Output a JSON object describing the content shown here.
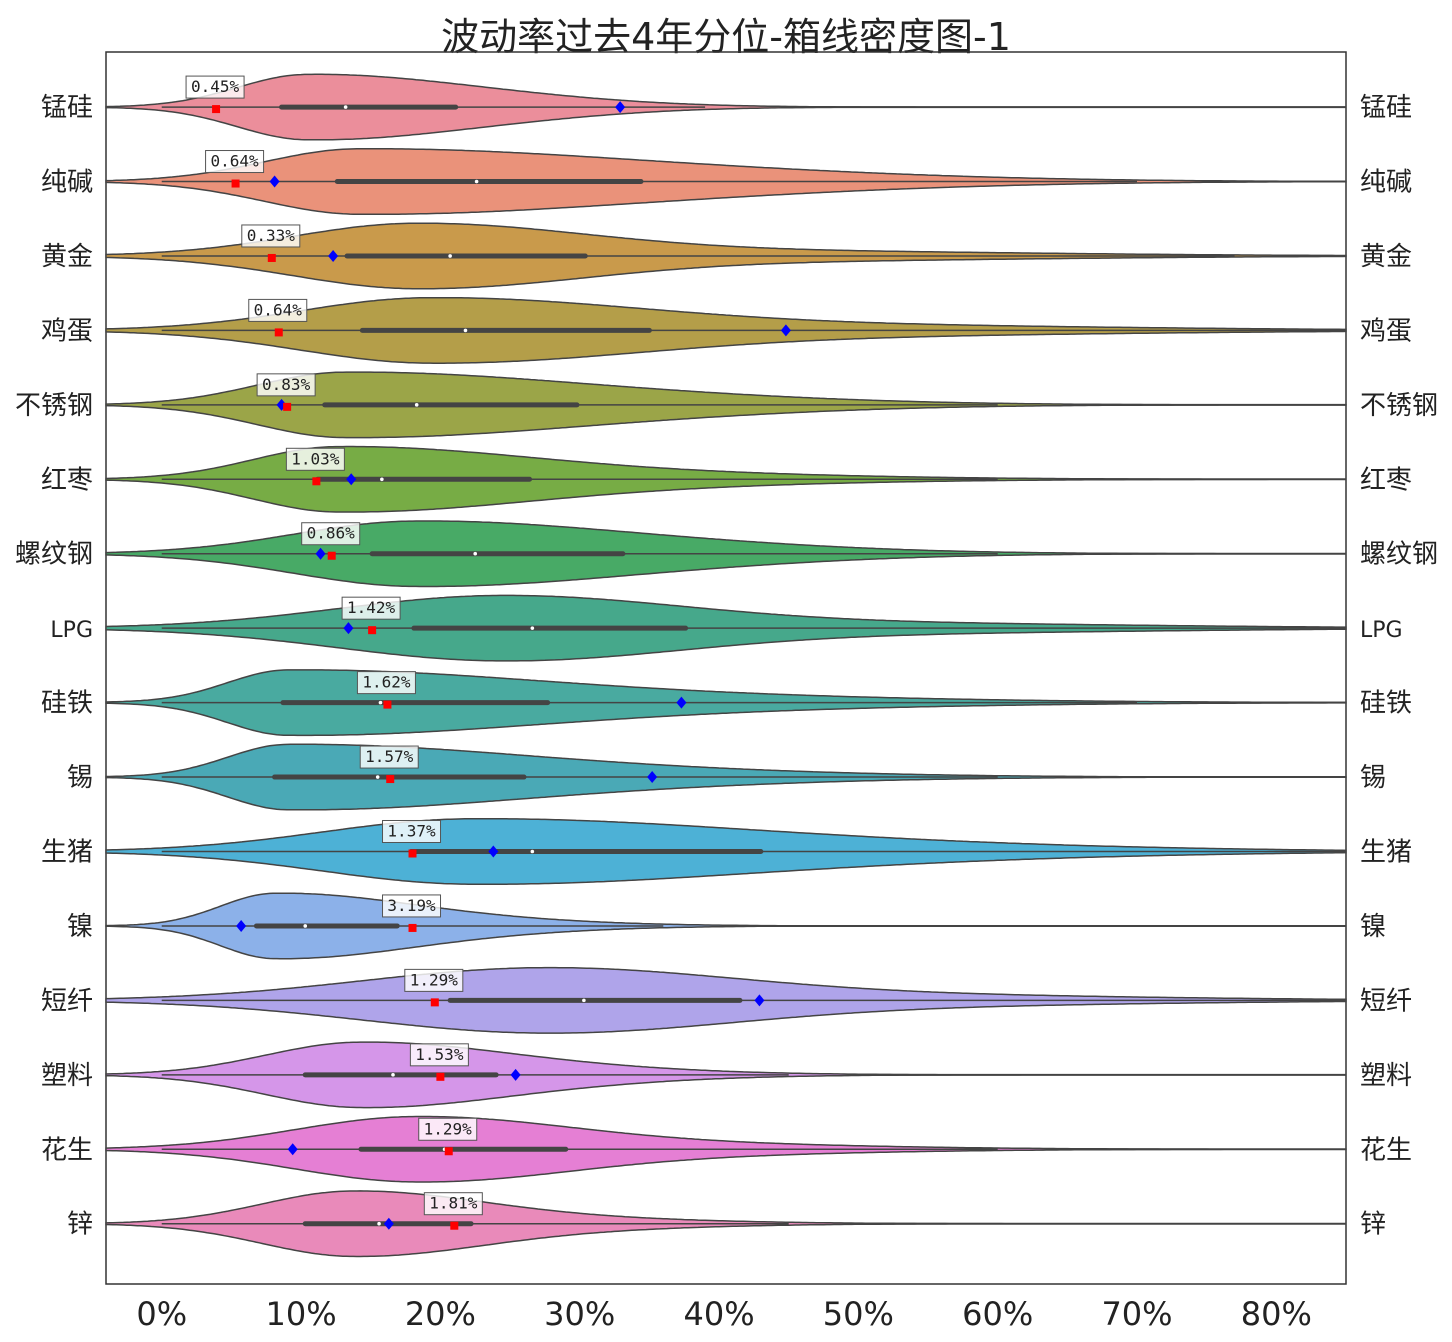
{
  "chart_data": {
    "type": "violin",
    "title": "波动率过去4年分位-箱线密度图-1",
    "xlabel": "",
    "ylabel": "",
    "xlim": [
      -4,
      85
    ],
    "x_ticks": [
      0,
      10,
      20,
      30,
      40,
      50,
      60,
      70,
      80
    ],
    "x_tick_labels": [
      "0%",
      "10%",
      "20%",
      "30%",
      "40%",
      "50%",
      "60%",
      "70%",
      "80%"
    ],
    "grid": false,
    "legend": "none",
    "markers": {
      "current": "red square",
      "reference": "blue diamond"
    },
    "series": [
      {
        "name": "锰硅",
        "color": "#eb8e9b",
        "min": 0,
        "q1": 8.6,
        "median": 13.2,
        "q3": 21.1,
        "max": 39,
        "kde_peak": 10.3,
        "current_pct": 3.9,
        "current_label": "0.45%",
        "reference": 32.9
      },
      {
        "name": "纯碱",
        "color": "#ea927a",
        "min": 0,
        "q1": 12.6,
        "median": 22.6,
        "q3": 34.4,
        "max": 70,
        "kde_peak": 14,
        "current_pct": 5.3,
        "current_label": "0.64%",
        "reference": 8.1
      },
      {
        "name": "黄金",
        "color": "#c99a4b",
        "min": 0,
        "q1": 13.3,
        "median": 20.7,
        "q3": 30.4,
        "max": 77,
        "kde_peak": 18,
        "current_pct": 7.9,
        "current_label": "0.33%",
        "reference": 12.3
      },
      {
        "name": "鸡蛋",
        "color": "#b49e49",
        "min": 0,
        "q1": 14.4,
        "median": 21.8,
        "q3": 35.0,
        "max": 85,
        "kde_peak": 19,
        "current_pct": 8.4,
        "current_label": "0.64%",
        "reference": 44.8
      },
      {
        "name": "不锈钢",
        "color": "#9ba548",
        "min": 0,
        "q1": 11.7,
        "median": 18.3,
        "q3": 29.8,
        "max": 60,
        "kde_peak": 13,
        "current_pct": 9.0,
        "current_label": "0.83%",
        "reference": 8.6
      },
      {
        "name": "红枣",
        "color": "#77ac45",
        "min": 0,
        "q1": 11.2,
        "median": 15.8,
        "q3": 26.4,
        "max": 60,
        "kde_peak": 12.5,
        "current_pct": 11.1,
        "current_label": "1.03%",
        "reference": 13.6
      },
      {
        "name": "螺纹钢",
        "color": "#48aa66",
        "min": 0,
        "q1": 15.1,
        "median": 22.5,
        "q3": 33.1,
        "max": 60,
        "kde_peak": 18,
        "current_pct": 12.2,
        "current_label": "0.86%",
        "reference": 11.4
      },
      {
        "name": "LPG",
        "color": "#46a88b",
        "min": 0,
        "q1": 18.1,
        "median": 26.6,
        "q3": 37.6,
        "max": 85,
        "kde_peak": 24,
        "current_pct": 15.1,
        "current_label": "1.42%",
        "reference": 13.4
      },
      {
        "name": "硅铁",
        "color": "#49aaa0",
        "min": 0,
        "q1": 8.7,
        "median": 15.7,
        "q3": 27.7,
        "max": 70,
        "kde_peak": 9,
        "current_pct": 16.2,
        "current_label": "1.62%",
        "reference": 37.3
      },
      {
        "name": "锡",
        "color": "#4aa9b6",
        "min": 0,
        "q1": 8.1,
        "median": 15.5,
        "q3": 26.0,
        "max": 60,
        "kde_peak": 9,
        "current_pct": 16.4,
        "current_label": "1.57%",
        "reference": 35.2
      },
      {
        "name": "生猪",
        "color": "#4db1d6",
        "min": 0,
        "q1": 17.9,
        "median": 26.6,
        "q3": 43.0,
        "max": 85,
        "kde_peak": 22,
        "current_pct": 18.0,
        "current_label": "1.37%",
        "reference": 23.8
      },
      {
        "name": "镍",
        "color": "#8cb1e9",
        "min": 0,
        "q1": 6.8,
        "median": 10.3,
        "q3": 16.9,
        "max": 36,
        "kde_peak": 8,
        "current_pct": 18.0,
        "current_label": "3.19%",
        "reference": 5.7
      },
      {
        "name": "短纤",
        "color": "#afa4ea",
        "min": 0,
        "q1": 20.7,
        "median": 30.3,
        "q3": 41.5,
        "max": 85,
        "kde_peak": 27,
        "current_pct": 19.6,
        "current_label": "1.29%",
        "reference": 42.9
      },
      {
        "name": "塑料",
        "color": "#d596e9",
        "min": 0,
        "q1": 10.3,
        "median": 16.6,
        "q3": 24.0,
        "max": 45,
        "kde_peak": 14,
        "current_pct": 20.0,
        "current_label": "1.53%",
        "reference": 25.4
      },
      {
        "name": "花生",
        "color": "#e57fd4",
        "min": 0,
        "q1": 14.3,
        "median": 20.3,
        "q3": 29.0,
        "max": 60,
        "kde_peak": 18,
        "current_pct": 20.6,
        "current_label": "1.29%",
        "reference": 9.4
      },
      {
        "name": "锌",
        "color": "#e98aba",
        "min": 0,
        "q1": 10.3,
        "median": 15.6,
        "q3": 22.2,
        "max": 45,
        "kde_peak": 13.5,
        "current_pct": 21.0,
        "current_label": "1.81%",
        "reference": 16.3
      }
    ]
  }
}
